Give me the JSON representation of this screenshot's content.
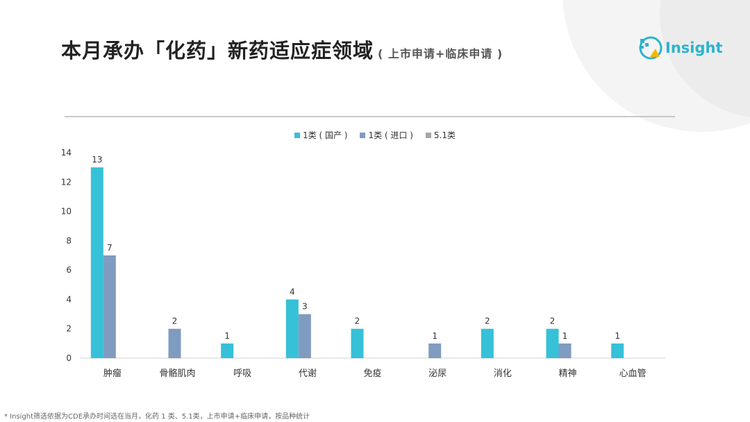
{
  "header": {
    "title": "本月承办「化药」新药适应症领域",
    "subtitle": "( 上市申请+临床申请 )"
  },
  "brand": {
    "logo_text": "Insight",
    "logo_icon": "insight-logo-icon"
  },
  "colors": {
    "series1": "#36c1d8",
    "series2": "#7f9cc0",
    "series3": "#a6a6a6",
    "axis": "#d0d0d0",
    "text": "#333333"
  },
  "footnote": "* Insight筛选依据为CDE承办时间选在当月，化药 1 类、5.1类，上市申请+临床申请，按品种统计",
  "chart_data": {
    "type": "bar",
    "categories": [
      "肿瘤",
      "骨骼肌肉",
      "呼吸",
      "代谢",
      "免疫",
      "泌尿",
      "消化",
      "精神",
      "心血管"
    ],
    "series": [
      {
        "name": "1类 ( 国产 )",
        "values": [
          13,
          0,
          1,
          4,
          2,
          0,
          2,
          2,
          1
        ]
      },
      {
        "name": "1类 ( 进口 )",
        "values": [
          7,
          2,
          0,
          3,
          0,
          1,
          0,
          1,
          0
        ]
      },
      {
        "name": "5.1类",
        "values": [
          0,
          0,
          0,
          0,
          0,
          0,
          0,
          0,
          0
        ]
      }
    ],
    "ylim": [
      0,
      14
    ],
    "yticks": [
      0,
      2,
      4,
      6,
      8,
      10,
      12,
      14
    ],
    "legend_position": "top-center",
    "grid": false
  }
}
